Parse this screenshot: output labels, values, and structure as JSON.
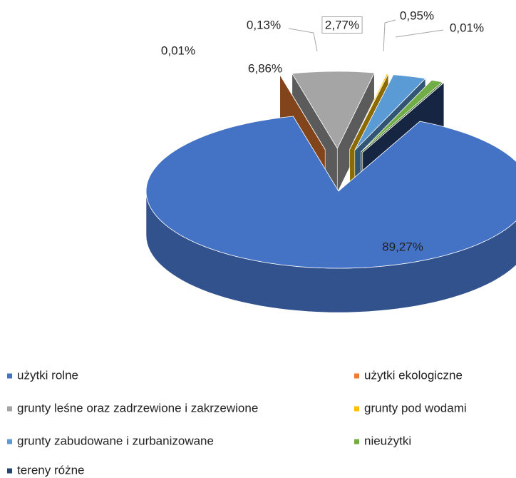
{
  "chart_data": {
    "type": "pie3d",
    "categories": [
      "użytki rolne",
      "użytki ekologiczne",
      "grunty leśne oraz zadrzewione i zakrzewione",
      "grunty pod wodami",
      "grunty zabudowane i zurbanizowane",
      "nieużytki",
      "tereny różne"
    ],
    "values": [
      89.27,
      0.01,
      6.86,
      0.13,
      2.77,
      0.95,
      0.01
    ],
    "value_labels": [
      "89,27%",
      "0,01%",
      "6,86%",
      "0,13%",
      "2,77%",
      "0,95%",
      "0,01%"
    ],
    "colors": [
      "#4472c4",
      "#ed7d31",
      "#a5a5a5",
      "#ffc000",
      "#5b9bd5",
      "#70ad47",
      "#264478"
    ],
    "legend": "bottom"
  }
}
